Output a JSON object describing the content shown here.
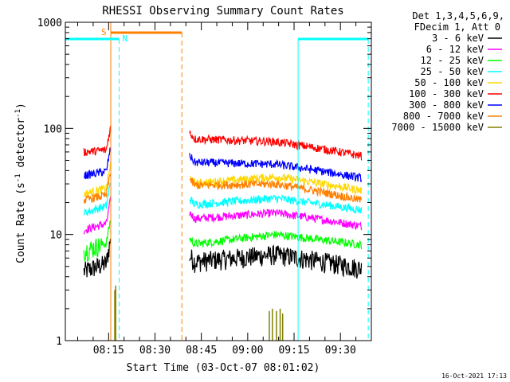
{
  "chart_data": {
    "type": "line",
    "title": "RHESSI Observing Summary Count Rates",
    "xlabel": "Start Time (03-Oct-07 08:01:02)",
    "ylabel_main": "Count Rate (s",
    "ylabel_sup1": "-1",
    "ylabel_mid": " detector",
    "ylabel_sup2": "-1",
    "ylabel_end": ")",
    "yscale": "log",
    "ylim": [
      1,
      1000
    ],
    "xlim_min": [
      0,
      99
    ],
    "x_ticks": [
      {
        "min": 14,
        "label": "08:15"
      },
      {
        "min": 29,
        "label": "08:30"
      },
      {
        "min": 44,
        "label": "08:45"
      },
      {
        "min": 59,
        "label": "09:00"
      },
      {
        "min": 74,
        "label": "09:15"
      },
      {
        "min": 89,
        "label": "09:30"
      }
    ],
    "y_ticks": [
      {
        "value": 1,
        "label": "1"
      },
      {
        "value": 10,
        "label": "10"
      },
      {
        "value": 100,
        "label": "100"
      },
      {
        "value": 1000,
        "label": "1000"
      }
    ],
    "legend_header": [
      "Det 1,3,4,5,6,9,",
      "FDecim 1, Att 0"
    ],
    "footer_date": "16-Oct-2021 17:13",
    "markers": {
      "saa_label": "S",
      "night_label": "N",
      "saa_start": 14.7,
      "saa_end": 37.7,
      "night_start": 17.4,
      "night_end": 75.3,
      "night2_start": 92.0,
      "night2_end": 98.0,
      "saa_color": "#ff8000",
      "night_color": "#00ffff"
    },
    "segments": [
      [
        6,
        14.6
      ],
      [
        40.2,
        95.8
      ]
    ],
    "series": [
      {
        "name": "3 - 6 keV",
        "color": "#000000",
        "base1": [
          4.5,
          5.5
        ],
        "base2": [
          5.5,
          6.5,
          4.8
        ]
      },
      {
        "name": "6 - 12 keV",
        "color": "#ff00ff",
        "base1": [
          11,
          13
        ],
        "base2": [
          14,
          16,
          12
        ]
      },
      {
        "name": "12 - 25 keV",
        "color": "#00ff00",
        "base1": [
          7,
          8.5
        ],
        "base2": [
          8,
          10,
          8
        ]
      },
      {
        "name": "25 - 50 keV",
        "color": "#00ffff",
        "base1": [
          16,
          19
        ],
        "base2": [
          19,
          22,
          17
        ]
      },
      {
        "name": "50 - 100 keV",
        "color": "#ffd700",
        "base1": [
          24,
          28
        ],
        "base2": [
          30,
          35,
          26
        ]
      },
      {
        "name": "100 - 300 keV",
        "color": "#ff0000",
        "base1": [
          60,
          63
        ],
        "base2": [
          80,
          75,
          55
        ]
      },
      {
        "name": "300 - 800 keV",
        "color": "#0000ff",
        "base1": [
          36,
          40
        ],
        "base2": [
          48,
          46,
          34
        ]
      },
      {
        "name": "800 - 7000 keV",
        "color": "#ff8000",
        "base1": [
          21,
          24
        ],
        "base2": [
          29,
          30,
          21
        ]
      },
      {
        "name": "7000 - 15000 keV",
        "color": "#808000",
        "base1": [
          0,
          0
        ],
        "base2": [
          0,
          0,
          0
        ]
      }
    ]
  }
}
